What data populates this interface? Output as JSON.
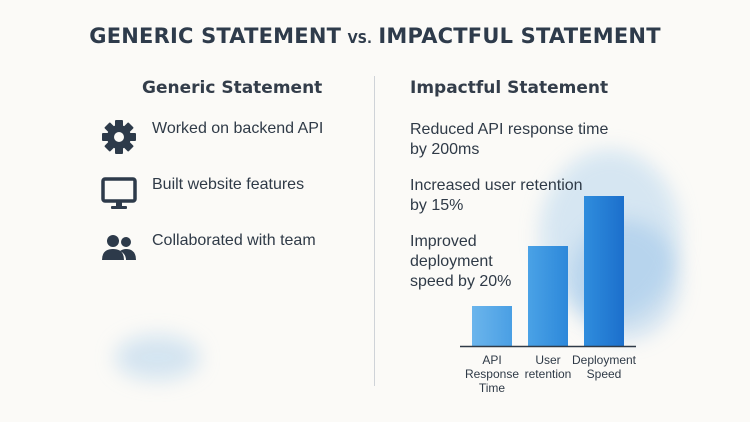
{
  "title": {
    "left": "GENERIC STATEMENT",
    "vs": "VS.",
    "right": "IMPACTFUL STATEMENT"
  },
  "generic": {
    "heading": "Generic Statement",
    "items": [
      {
        "label": "Worked on backend API",
        "icon": "gear-icon"
      },
      {
        "label": "Built website features",
        "icon": "monitor-icon"
      },
      {
        "label": "Collaborated with team",
        "icon": "people-icon"
      }
    ]
  },
  "impactful": {
    "heading": "Impactful Statement",
    "items": [
      "Reduced API response time\nby 200ms",
      "Increased user retention\nby 15%",
      "Improved\ndeployment\nspeed by 20%"
    ]
  },
  "colors": {
    "accent_blue": "#2a86d9",
    "text_dark": "#2f3a47",
    "icon_dark": "#2d3a4a"
  },
  "chart_data": {
    "type": "bar",
    "categories": [
      "API Response Time",
      "User retention",
      "Deployment Speed"
    ],
    "category_lines": [
      [
        "API",
        "Response",
        "Time"
      ],
      [
        "User",
        "retention"
      ],
      [
        "Deployment",
        "Speed"
      ]
    ],
    "values": [
      20,
      50,
      75
    ],
    "ylim": [
      0,
      80
    ],
    "title": "",
    "xlabel": "",
    "ylabel": "",
    "grid": false
  }
}
